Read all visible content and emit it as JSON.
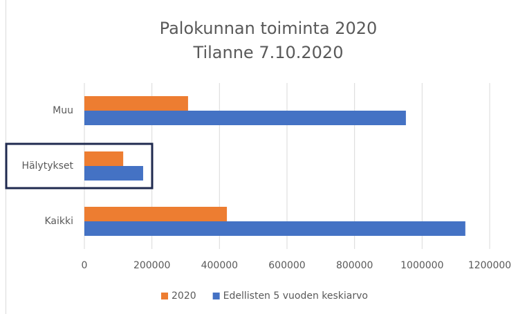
{
  "chart_data": {
    "type": "barh",
    "title": "Palokunnan toiminta 2020",
    "subtitle": "Tilanne 7.10.2020",
    "categories": [
      "Muu",
      "Hälytykset",
      "Kaikki"
    ],
    "series": [
      {
        "name": "2020",
        "color": "#ed7d31",
        "values": [
          307000,
          115000,
          422000
        ]
      },
      {
        "name": "Edellisten 5 vuoden keskiarvo",
        "color": "#4472c4",
        "values": [
          952000,
          174000,
          1128000
        ]
      }
    ],
    "xlim": [
      0,
      1200000
    ],
    "xticks": [
      0,
      200000,
      400000,
      600000,
      800000,
      1000000,
      1200000
    ],
    "grid": true,
    "legend": "bottom"
  }
}
